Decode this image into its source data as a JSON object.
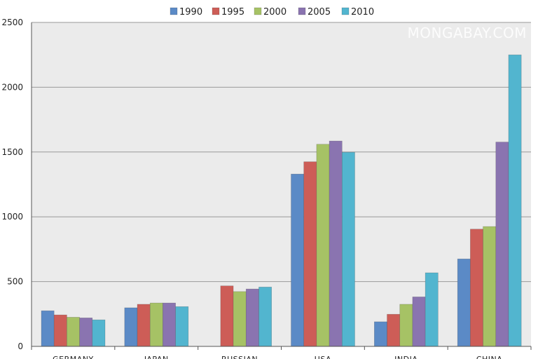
{
  "chart_data": {
    "type": "bar",
    "categories": [
      "GERMANY",
      "JAPAN",
      "RUSSIAN",
      "USA",
      "INDIA",
      "CHINA"
    ],
    "series": [
      {
        "name": "1990",
        "color": "#5b8ac6",
        "values": [
          275,
          298,
          null,
          1330,
          190,
          675
        ]
      },
      {
        "name": "1995",
        "color": "#cd5d57",
        "values": [
          243,
          325,
          467,
          1425,
          248,
          905
        ]
      },
      {
        "name": "2000",
        "color": "#a6c265",
        "values": [
          225,
          335,
          423,
          1560,
          325,
          925
        ]
      },
      {
        "name": "2005",
        "color": "#8a74b0",
        "values": [
          220,
          335,
          443,
          1585,
          382,
          1577
        ]
      },
      {
        "name": "2010",
        "color": "#52b5cf",
        "values": [
          205,
          307,
          458,
          1498,
          568,
          2250
        ]
      }
    ],
    "ylim": [
      0,
      2500
    ],
    "yticks": [
      0,
      500,
      1000,
      1500,
      2000,
      2500
    ],
    "grid": true,
    "legend_position": "top-center"
  },
  "watermark": "MONGABAY.COM",
  "colors": {
    "plot_background": "#ebebeb",
    "gridline": "#9a9a9a",
    "axis": "#555555"
  }
}
